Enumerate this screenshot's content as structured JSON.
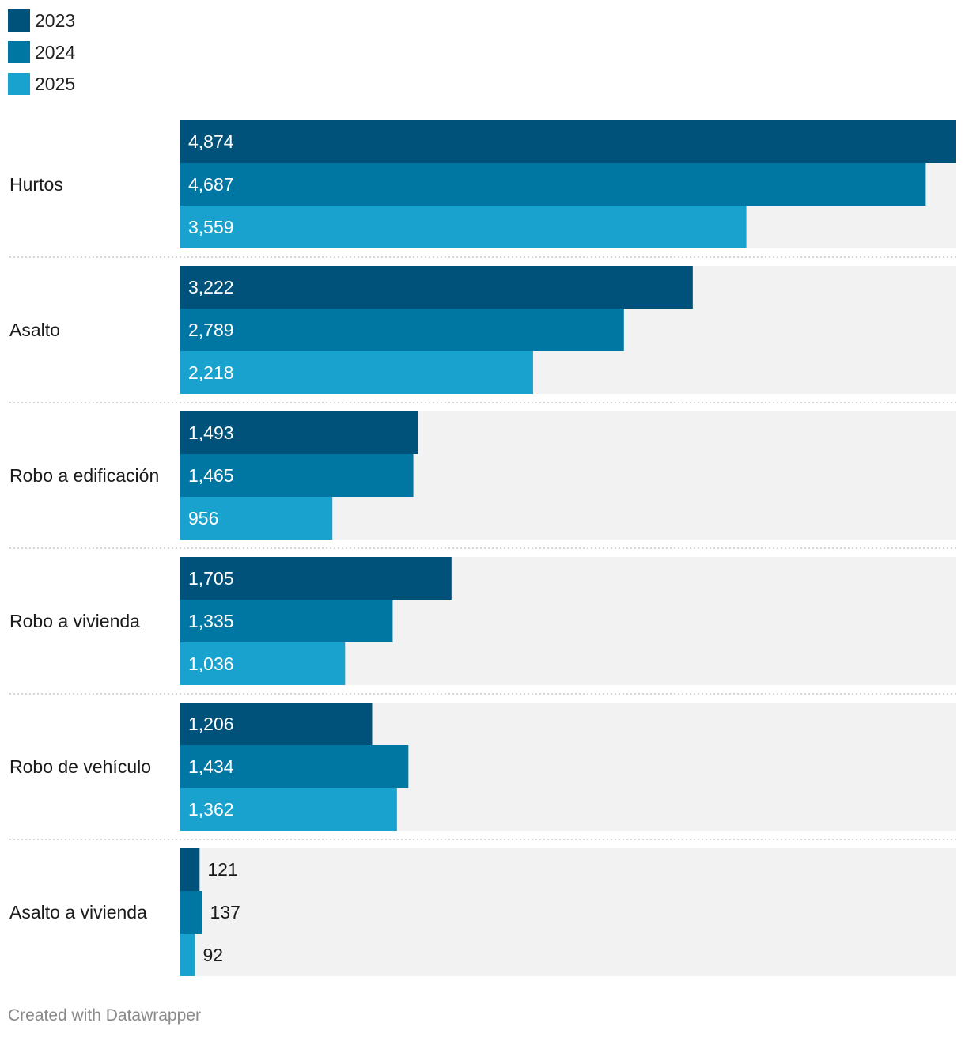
{
  "chart_data": {
    "type": "bar",
    "orientation": "horizontal",
    "categories": [
      "Hurtos",
      "Asalto",
      "Robo a edificación",
      "Robo a vivienda",
      "Robo de vehículo",
      "Asalto a vivienda"
    ],
    "series": [
      {
        "name": "2023",
        "color": "#00527a",
        "values": [
          4874,
          3222,
          1493,
          1705,
          1206,
          121
        ]
      },
      {
        "name": "2024",
        "color": "#0077a3",
        "values": [
          4687,
          2789,
          1465,
          1335,
          1434,
          137
        ]
      },
      {
        "name": "2025",
        "color": "#19a2ce",
        "values": [
          3559,
          2218,
          956,
          1036,
          1362,
          92
        ]
      }
    ],
    "value_labels": [
      [
        "4,874",
        "4,687",
        "3,559"
      ],
      [
        "3,222",
        "2,789",
        "2,218"
      ],
      [
        "1,493",
        "1,465",
        "956"
      ],
      [
        "1,705",
        "1,335",
        "1,036"
      ],
      [
        "1,206",
        "1,434",
        "1,362"
      ],
      [
        "121",
        "137",
        "92"
      ]
    ],
    "xlim": [
      0,
      4874
    ],
    "legend_position": "top-left",
    "grid": false
  },
  "legend": {
    "items": [
      {
        "label": "2023",
        "color": "#00527a"
      },
      {
        "label": "2024",
        "color": "#0077a3"
      },
      {
        "label": "2025",
        "color": "#19a2ce"
      }
    ]
  },
  "footer": {
    "credit": "Created with Datawrapper"
  }
}
